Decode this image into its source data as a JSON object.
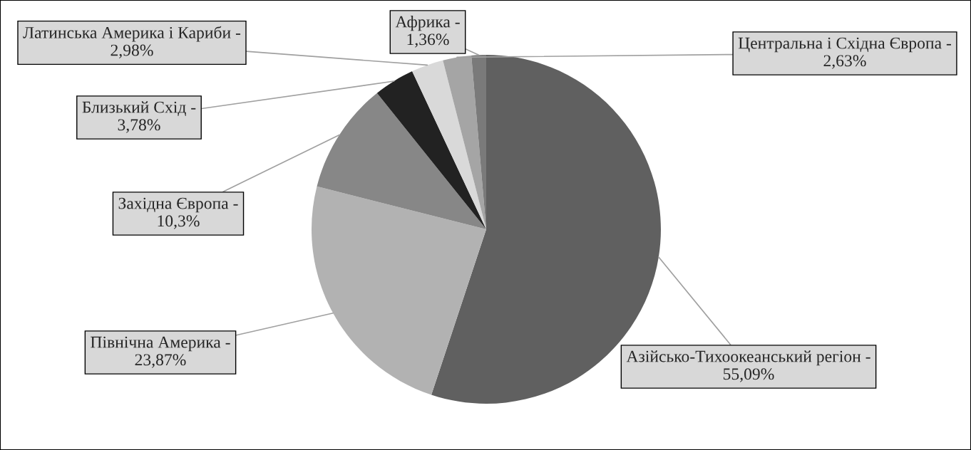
{
  "chart_data": {
    "type": "pie",
    "categories": [
      "Азійсько-Тихоокеанський регіон -",
      "Північна Америка -",
      "Західна Європа -",
      "Близький Схід -",
      "Латинська Америка і Кариби -",
      "Центральна і Східна Європа -",
      "Африка -"
    ],
    "values": [
      55.09,
      23.87,
      10.3,
      3.78,
      2.98,
      2.63,
      1.36
    ],
    "value_labels": [
      "55,09%",
      "23,87%",
      "10,3%",
      "3,78%",
      "2,98%",
      "2,63%",
      "1,36%"
    ],
    "colors": [
      "#606060",
      "#b2b2b2",
      "#878787",
      "#222222",
      "#d9d9d9",
      "#a5a5a5",
      "#7a7a7a"
    ],
    "legend": false
  }
}
